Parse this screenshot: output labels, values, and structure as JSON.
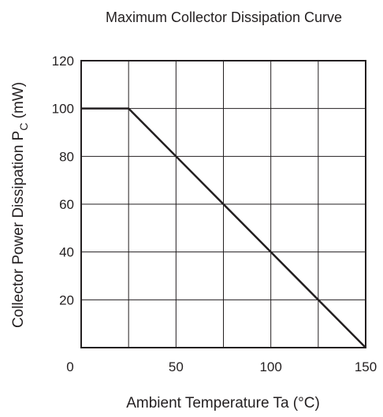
{
  "chart_data": {
    "type": "line",
    "title": "Maximum Collector Dissipation Curve",
    "xlabel": "Ambient Temperature  Ta  (°C)",
    "ylabel": {
      "main": "Collector Power Dissipation  P",
      "subscript": "C",
      "unit": "  (mW)"
    },
    "xlim": [
      0,
      150
    ],
    "ylim": [
      0,
      120
    ],
    "x_ticks": [
      0,
      50,
      100,
      150
    ],
    "y_ticks": [
      20,
      40,
      60,
      80,
      100,
      120
    ],
    "x_grid": [
      25,
      50,
      75,
      100,
      125
    ],
    "y_grid": [
      20,
      40,
      60,
      80,
      100
    ],
    "grid": true,
    "series": [
      {
        "x": [
          0,
          25,
          150
        ],
        "y": [
          100,
          100,
          0
        ]
      }
    ],
    "colors": {
      "line": "#231f20",
      "grid": "#231f20",
      "text": "#231f20"
    }
  }
}
